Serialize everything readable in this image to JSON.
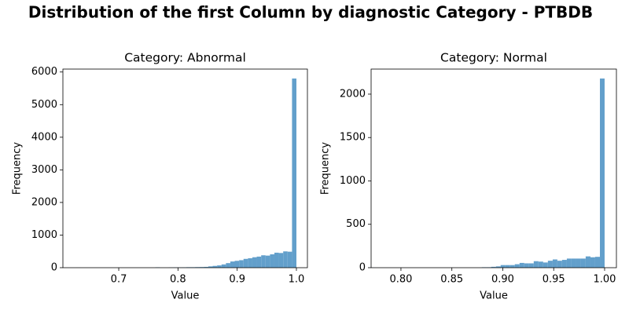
{
  "title": "Distribution of the first Column by diagnostic Category - PTBDB",
  "chart_data": [
    {
      "type": "histogram",
      "title": "Category: Abnormal",
      "xlabel": "Value",
      "ylabel": "Frequency",
      "color": "#629fcb",
      "grid": false,
      "bins": [
        0.628,
        0.6354,
        0.6429,
        0.6503,
        0.6578,
        0.6652,
        0.6726,
        0.6801,
        0.6875,
        0.695,
        0.7024,
        0.7098,
        0.7173,
        0.7247,
        0.7322,
        0.7396,
        0.747,
        0.7545,
        0.7619,
        0.7694,
        0.7768,
        0.7842,
        0.7917,
        0.7991,
        0.8066,
        0.814,
        0.8214,
        0.8289,
        0.8363,
        0.8438,
        0.8512,
        0.8586,
        0.8661,
        0.8735,
        0.881,
        0.8884,
        0.8958,
        0.9033,
        0.9107,
        0.9182,
        0.9256,
        0.933,
        0.9405,
        0.9479,
        0.9554,
        0.9628,
        0.9702,
        0.9777,
        0.9851,
        0.9926,
        1.0
      ],
      "values": [
        2,
        0,
        0,
        0,
        0,
        0,
        0,
        0,
        0,
        0,
        0,
        0,
        0,
        0,
        0,
        0,
        0,
        0,
        12,
        0,
        0,
        5,
        8,
        10,
        12,
        15,
        15,
        18,
        20,
        25,
        40,
        55,
        70,
        100,
        140,
        190,
        210,
        230,
        270,
        290,
        320,
        340,
        380,
        370,
        410,
        460,
        450,
        500,
        490,
        5800
      ],
      "xlim": [
        0.6057,
        1.0186
      ],
      "xticks": [
        0.7,
        0.8,
        0.9,
        {
          "value": 1,
          "label": "1.0"
        }
      ],
      "ylim": [
        0,
        6090
      ],
      "yticks": [
        0,
        1000,
        2000,
        3000,
        4000,
        5000,
        6000
      ]
    },
    {
      "type": "histogram",
      "title": "Category: Normal",
      "xlabel": "Value",
      "ylabel": "Frequency",
      "color": "#629fcb",
      "grid": false,
      "bins": [
        0.768,
        0.7726,
        0.7773,
        0.7819,
        0.7866,
        0.7912,
        0.7958,
        0.8005,
        0.8051,
        0.8098,
        0.8144,
        0.819,
        0.8237,
        0.8283,
        0.833,
        0.8376,
        0.8422,
        0.8469,
        0.8515,
        0.8562,
        0.8608,
        0.8654,
        0.8701,
        0.8747,
        0.8794,
        0.884,
        0.8886,
        0.8933,
        0.8979,
        0.9026,
        0.9072,
        0.9118,
        0.9165,
        0.9211,
        0.9258,
        0.9304,
        0.935,
        0.9397,
        0.9443,
        0.949,
        0.9536,
        0.9582,
        0.9629,
        0.9675,
        0.9722,
        0.9768,
        0.9814,
        0.9861,
        0.9907,
        0.9954,
        1.0
      ],
      "values": [
        2,
        0,
        0,
        0,
        0,
        0,
        0,
        0,
        0,
        0,
        0,
        0,
        0,
        0,
        0,
        0,
        0,
        0,
        0,
        0,
        0,
        0,
        0,
        0,
        5,
        5,
        10,
        15,
        30,
        30,
        30,
        40,
        55,
        50,
        50,
        75,
        70,
        60,
        80,
        95,
        80,
        90,
        105,
        105,
        105,
        105,
        130,
        120,
        125,
        2180
      ],
      "xlim": [
        0.7707,
        1.0116
      ],
      "xticks": [
        {
          "value": 0.8,
          "label": "0.80"
        },
        {
          "value": 0.85,
          "label": "0.85"
        },
        {
          "value": 0.9,
          "label": "0.90"
        },
        {
          "value": 0.95,
          "label": "0.95"
        },
        {
          "value": 1,
          "label": "1.00"
        }
      ],
      "ylim": [
        0,
        2289
      ],
      "yticks": [
        0,
        500,
        1000,
        1500,
        2000
      ]
    }
  ]
}
